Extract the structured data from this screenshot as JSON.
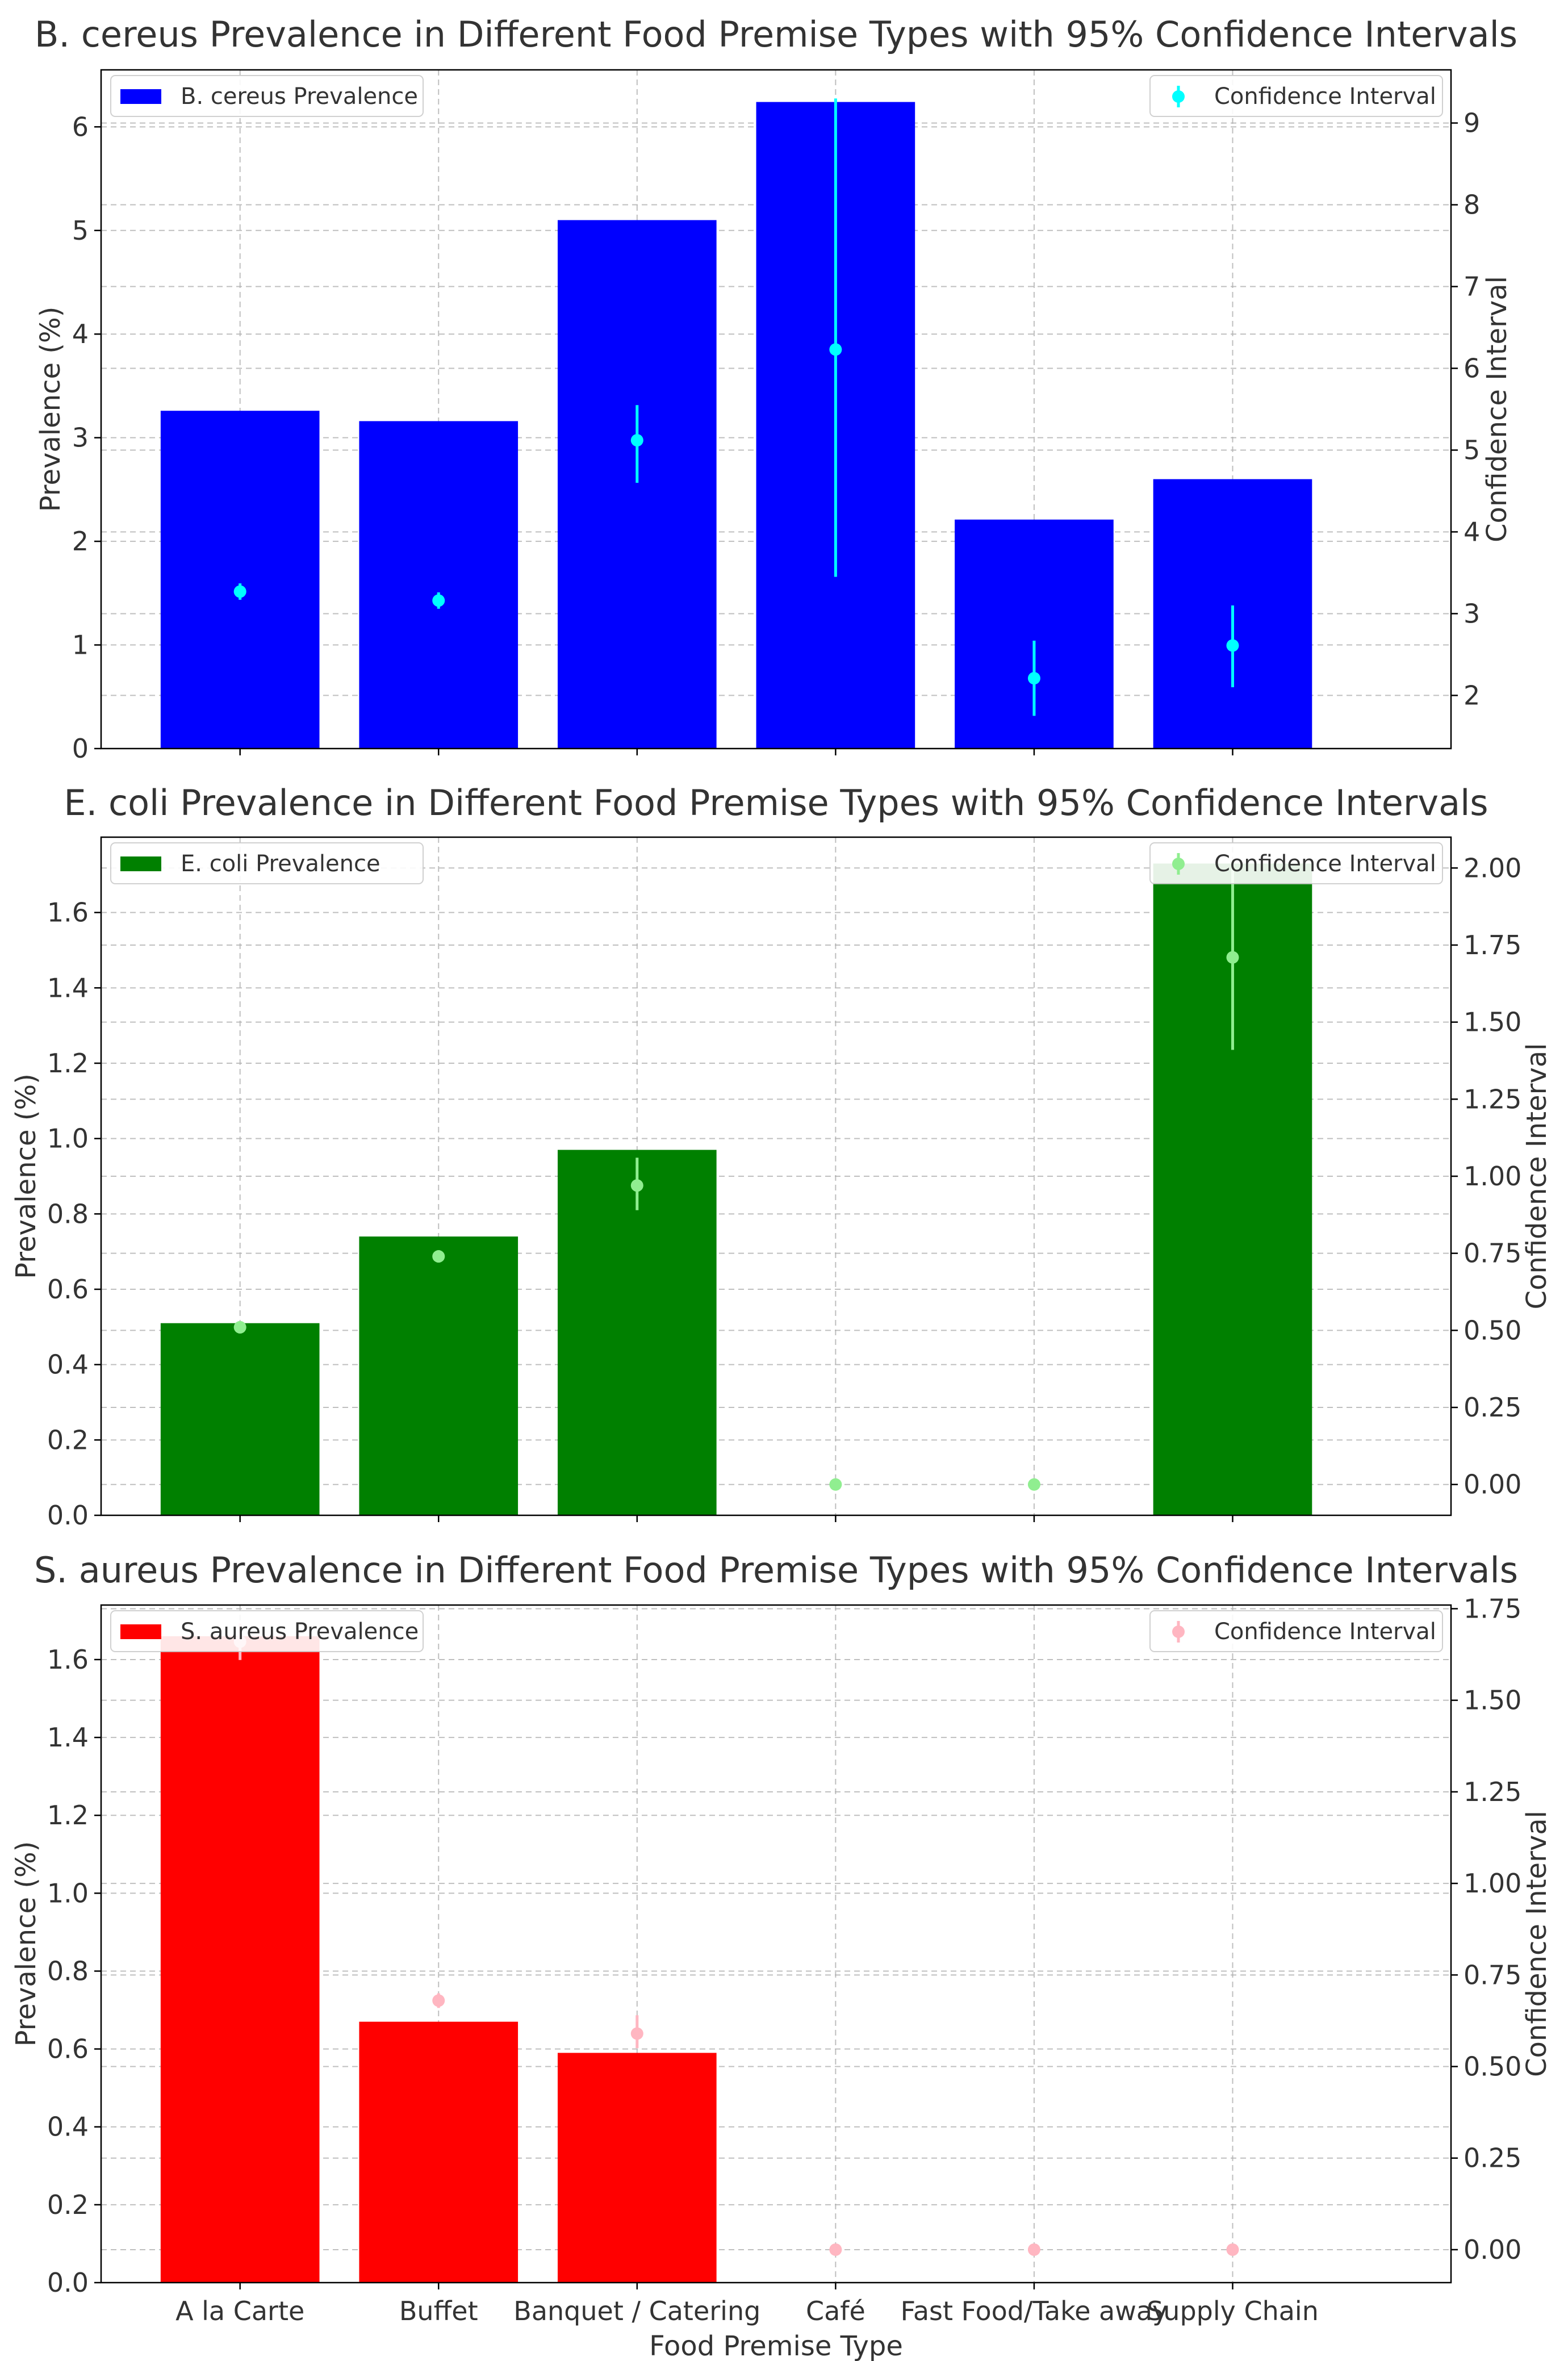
{
  "chart_data": [
    {
      "type": "bar",
      "title": "B. cereus Prevalence in Different Food Premise Types with 95% Confidence Intervals",
      "categories": [
        "A la Carte",
        "Buffet",
        "Banquet / Catering",
        "Café",
        "Fast Food/Take away",
        "Supply Chain"
      ],
      "values": [
        3.26,
        3.16,
        5.1,
        6.24,
        2.21,
        2.6
      ],
      "ci_series": {
        "name": "Confidence Interval",
        "center": [
          3.27,
          3.16,
          5.12,
          6.23,
          2.21,
          2.61
        ],
        "low": [
          3.17,
          3.06,
          4.6,
          3.45,
          1.75,
          2.1
        ],
        "high": [
          3.37,
          3.26,
          5.55,
          9.3,
          2.67,
          3.1
        ]
      },
      "xlabel": "",
      "ylabel": "Prevalence (%)",
      "ylabel_right": "Confidence Interval",
      "ylim": [
        0,
        6.55
      ],
      "ylim_right": [
        1.35,
        9.65
      ],
      "yticks": [
        "0",
        "1",
        "2",
        "3",
        "4",
        "5",
        "6"
      ],
      "yticks_right": [
        "2",
        "3",
        "4",
        "5",
        "6",
        "7",
        "8",
        "9"
      ],
      "bar_color": "#0000ff",
      "ci_color": "#00ffff",
      "legend_bar": "B. cereus Prevalence",
      "legend_ci": "Confidence Interval"
    },
    {
      "type": "bar",
      "title": "E. coli Prevalence in Different Food Premise Types with 95% Confidence Intervals",
      "categories": [
        "A la Carte",
        "Buffet",
        "Banquet / Catering",
        "Café",
        "Fast Food/Take away",
        "Supply Chain"
      ],
      "values": [
        0.51,
        0.74,
        0.97,
        0.0,
        0.0,
        1.73
      ],
      "ci_series": {
        "name": "Confidence Interval",
        "center": [
          0.51,
          0.74,
          0.97,
          0.0,
          0.0,
          1.71
        ],
        "low": [
          0.49,
          0.72,
          0.89,
          0.0,
          0.0,
          1.41
        ],
        "high": [
          0.53,
          0.76,
          1.06,
          0.0,
          0.0,
          2.02
        ]
      },
      "xlabel": "",
      "ylabel": "Prevalence (%)",
      "ylabel_right": "Confidence Interval",
      "ylim": [
        0,
        1.8
      ],
      "ylim_right": [
        -0.1,
        2.1
      ],
      "yticks": [
        "0.0",
        "0.2",
        "0.4",
        "0.6",
        "0.8",
        "1.0",
        "1.2",
        "1.4",
        "1.6"
      ],
      "yticks_right": [
        "0.00",
        "0.25",
        "0.50",
        "0.75",
        "1.00",
        "1.25",
        "1.50",
        "1.75",
        "2.00"
      ],
      "bar_color": "#008000",
      "ci_color": "#90ee90",
      "legend_bar": "E. coli Prevalence",
      "legend_ci": "Confidence Interval"
    },
    {
      "type": "bar",
      "title": "S. aureus Prevalence in Different Food Premise Types with 95% Confidence Intervals",
      "categories": [
        "A la Carte",
        "Buffet",
        "Banquet / Catering",
        "Café",
        "Fast Food/Take away",
        "Supply Chain"
      ],
      "values": [
        1.66,
        0.67,
        0.59,
        0.0,
        0.0,
        0.0
      ],
      "ci_series": {
        "name": "Confidence Interval",
        "center": [
          1.66,
          0.68,
          0.59,
          0.0,
          0.0,
          0.0
        ],
        "low": [
          1.61,
          0.66,
          0.55,
          0.0,
          0.0,
          0.0
        ],
        "high": [
          1.71,
          0.7,
          0.64,
          0.0,
          0.0,
          0.0
        ]
      },
      "xlabel": "Food Premise Type",
      "ylabel": "Prevalence (%)",
      "ylabel_right": "Confidence Interval",
      "ylim": [
        0,
        1.74
      ],
      "ylim_right": [
        -0.09,
        1.76
      ],
      "yticks": [
        "0.0",
        "0.2",
        "0.4",
        "0.6",
        "0.8",
        "1.0",
        "1.2",
        "1.4",
        "1.6"
      ],
      "yticks_right": [
        "0.00",
        "0.25",
        "0.50",
        "0.75",
        "1.00",
        "1.25",
        "1.50",
        "1.75"
      ],
      "bar_color": "#ff0000",
      "ci_color": "#ffb6c1",
      "legend_bar": "S. aureus Prevalence",
      "legend_ci": "Confidence Interval"
    }
  ]
}
